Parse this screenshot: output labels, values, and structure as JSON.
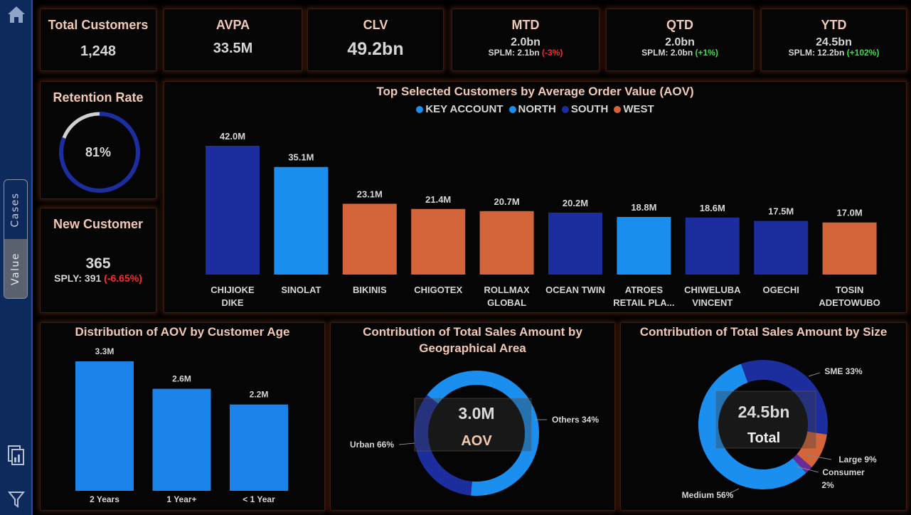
{
  "nav": {
    "home_icon": "home-icon",
    "tabs": [
      {
        "label": "Cases",
        "active": false
      },
      {
        "label": "Value",
        "active": true
      }
    ],
    "report_icon": "report-pages-icon",
    "filter_icon": "filter-icon"
  },
  "kpis": {
    "total_customers": {
      "title": "Total Customers",
      "value": "1,248"
    },
    "avpa": {
      "title": "AVPA",
      "value": "33.5M"
    },
    "clv": {
      "title": "CLV",
      "value": "49.2bn"
    },
    "mtd": {
      "title": "MTD",
      "value": "2.0bn",
      "sub_prefix": "SPLM: 2.1bn ",
      "sub_change": "(-3%)"
    },
    "qtd": {
      "title": "QTD",
      "value": "2.0bn",
      "sub_prefix": "SPLM: 2.0bn ",
      "sub_change": "(+1%)"
    },
    "ytd": {
      "title": "YTD",
      "value": "24.5bn",
      "sub_prefix": "SPLM: 12.2bn ",
      "sub_change": "(+102%)"
    }
  },
  "retention": {
    "title": "Retention Rate",
    "value": "81%",
    "fraction": 0.81
  },
  "new_customer": {
    "title": "New Customer",
    "value": "365",
    "sub_prefix": "SPLY: 391 ",
    "sub_change": "(-6.65%)"
  },
  "colors": {
    "key_account": "#1a8ff0",
    "north": "#1a8ff0",
    "south": "#1c2d9e",
    "west": "#d4643a",
    "age_bar": "#1a84ea",
    "ring_track": "#d0d0d0",
    "consumer": "#6a2a9a"
  },
  "chart_data": [
    {
      "type": "bar",
      "title": "Top Selected Customers by Average Order Value (AOV)",
      "legend": [
        {
          "name": "KEY ACCOUNT",
          "color": "#1a8ff0"
        },
        {
          "name": "NORTH",
          "color": "#1a8ff0"
        },
        {
          "name": "SOUTH",
          "color": "#1c2d9e"
        },
        {
          "name": "WEST",
          "color": "#d4643a"
        }
      ],
      "legend_position": "top-center",
      "categories": [
        [
          "CHIJIOKE",
          "DIKE"
        ],
        [
          "SINOLAT"
        ],
        [
          "BIKINIS"
        ],
        [
          "CHIGOTEX"
        ],
        [
          "ROLLMAX",
          "GLOBAL"
        ],
        [
          "OCEAN TWIN"
        ],
        [
          "ATROES",
          "RETAIL PLA..."
        ],
        [
          "CHIWELUBA",
          "VINCENT"
        ],
        [
          "OGECHI"
        ],
        [
          "TOSIN",
          "ADETOWUBO"
        ]
      ],
      "values": [
        42.0,
        35.1,
        23.1,
        21.4,
        20.7,
        20.2,
        18.8,
        18.6,
        17.5,
        17.0
      ],
      "labels": [
        "42.0M",
        "35.1M",
        "23.1M",
        "21.4M",
        "20.7M",
        "20.2M",
        "18.8M",
        "18.6M",
        "17.5M",
        "17.0M"
      ],
      "colors": [
        "#1c2d9e",
        "#1a8ff0",
        "#d4643a",
        "#d4643a",
        "#d4643a",
        "#1c2d9e",
        "#1a8ff0",
        "#1c2d9e",
        "#1c2d9e",
        "#d4643a"
      ],
      "unit": "M"
    },
    {
      "type": "bar",
      "title": "Distribution of AOV by Customer Age",
      "categories": [
        "2 Years",
        "1 Year+",
        "< 1 Year"
      ],
      "values": [
        3.3,
        2.6,
        2.2
      ],
      "labels": [
        "3.3M",
        "2.6M",
        "2.2M"
      ],
      "unit": "M"
    },
    {
      "type": "pie",
      "title": "Contribution of Total Sales Amount by Geographical Area",
      "slices": [
        {
          "name": "Urban",
          "value": 66,
          "label": "Urban 66%",
          "color": "#1a8ff0"
        },
        {
          "name": "Others",
          "value": 34,
          "label": "Others 34%",
          "color": "#1c2d9e"
        }
      ],
      "center_value": "3.0M",
      "center_label": "AOV"
    },
    {
      "type": "pie",
      "title": "Contribution of Total Sales Amount by Size",
      "slices": [
        {
          "name": "SME",
          "value": 33,
          "label": "SME 33%",
          "color": "#1c2d9e"
        },
        {
          "name": "Large",
          "value": 9,
          "label": "Large 9%",
          "color": "#d4643a"
        },
        {
          "name": "Consumer",
          "value": 2,
          "label": "Consumer 2%",
          "color": "#6a2a9a"
        },
        {
          "name": "Medium",
          "value": 56,
          "label": "Medium 56%",
          "color": "#1a8ff0"
        }
      ],
      "center_value": "24.5bn",
      "center_label": "Total"
    }
  ]
}
